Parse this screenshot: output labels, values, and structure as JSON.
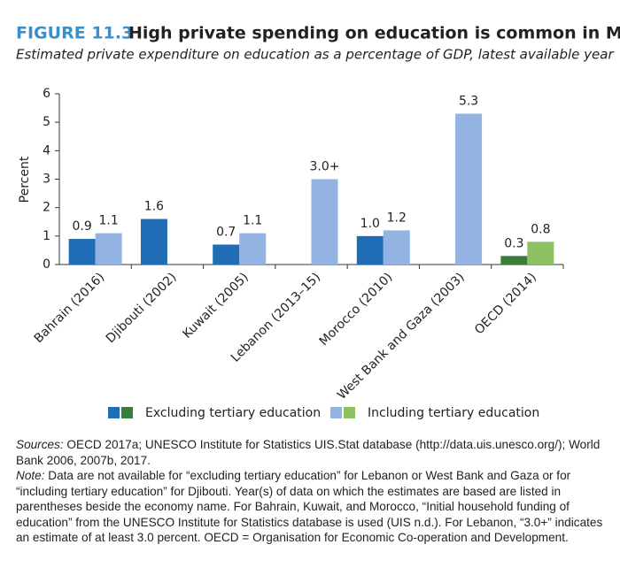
{
  "chart_data": {
    "type": "bar",
    "figure_label": "FIGURE 11.3",
    "title": "High private spending on education is common in MENA",
    "subtitle": "Estimated private expenditure on education as a percentage of GDP, latest available year",
    "y_label": "Percent",
    "categories": [
      "Bahrain (2016)",
      "Djibouti (2002)",
      "Kuwait (2005)",
      "Lebanon (2013–15)",
      "Morocco (2010)",
      "West Bank and Gaza (2003)",
      "OECD (2014)"
    ],
    "series": [
      {
        "name": "Excluding tertiary education",
        "colors": [
          "#1f6eb5",
          "#1f6eb5",
          "#1f6eb5",
          "#1f6eb5",
          "#1f6eb5",
          "#1f6eb5",
          "#3b7d3b"
        ],
        "values": [
          0.9,
          1.6,
          0.7,
          null,
          1.0,
          null,
          0.3
        ],
        "value_labels": [
          "0.9",
          "1.6",
          "0.7",
          null,
          "1.0",
          null,
          "0.3"
        ]
      },
      {
        "name": "Including tertiary education",
        "colors": [
          "#93b4e3",
          "#93b4e3",
          "#93b4e3",
          "#93b4e3",
          "#93b4e3",
          "#93b4e3",
          "#8dc264"
        ],
        "values": [
          1.1,
          null,
          1.1,
          3.0,
          1.2,
          5.3,
          0.8
        ],
        "value_labels": [
          "1.1",
          null,
          "1.1",
          "3.0+",
          "1.2",
          "5.3",
          "0.8"
        ]
      }
    ],
    "ylim": [
      0,
      6
    ],
    "yticks": [
      0,
      1,
      2,
      3,
      4,
      5,
      6
    ],
    "sources_label": "Sources:",
    "sources_text": " OECD 2017a; UNESCO Institute for Statistics UIS.Stat database (http://data.uis.unesco.org/); World Bank 2006, 2007b, 2017.",
    "note_label": "Note:",
    "note_text": " Data are not available for “excluding tertiary education” for Lebanon or West Bank and Gaza or for “including tertiary education” for Djibouti. Year(s) of data on which the estimates are based are listed in parentheses beside the economy name. For Bahrain, Kuwait, and Morocco, “Initial household funding of education” from the UNESCO Institute for Statistics database is used (UIS n.d.). For Lebanon, “3.0+” indicates an estimate of at least 3.0 percent. OECD = Organisation for Economic Co-operation and Development."
  }
}
